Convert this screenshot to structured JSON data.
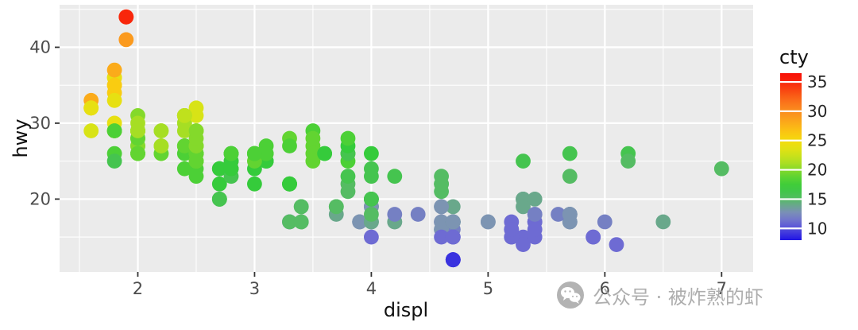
{
  "figure": {
    "background": "#FFFFFF",
    "panel_bg": "#EBEBEB",
    "grid_color": "#FFFFFF",
    "tick_color": "#333333",
    "tick_label_color": "#4D4D4D",
    "axis_title_color": "#111111",
    "point_radius": 9.4
  },
  "chart_data": {
    "type": "scatter",
    "title": "",
    "xlabel": "displ",
    "ylabel": "hwy",
    "color_label": "cty",
    "xlim": [
      1.33,
      7.27
    ],
    "ylim": [
      10.4,
      45.6
    ],
    "x_ticks": [
      2,
      3,
      4,
      5,
      6,
      7
    ],
    "x_minor_ticks": [
      1.5,
      2.5,
      3.5,
      4.5,
      5.5,
      6.5
    ],
    "y_ticks": [
      20,
      30,
      40
    ],
    "y_minor_ticks": [
      15,
      25,
      35,
      45
    ],
    "grid": true,
    "legend": {
      "title": "cty",
      "position": "right",
      "ticks": [
        35,
        30,
        25,
        20,
        15,
        10
      ],
      "range": [
        8.0,
        36.5
      ]
    },
    "color_scale": {
      "stops": [
        {
          "v": 8,
          "c": "#2015E5"
        },
        {
          "v": 11,
          "c": "#6E6BD3"
        },
        {
          "v": 13,
          "c": "#7C94B2"
        },
        {
          "v": 15,
          "c": "#55BC63"
        },
        {
          "v": 17,
          "c": "#35CB3B"
        },
        {
          "v": 19,
          "c": "#62D431"
        },
        {
          "v": 21,
          "c": "#A6DE24"
        },
        {
          "v": 23,
          "c": "#D8E316"
        },
        {
          "v": 25,
          "c": "#F6DC0D"
        },
        {
          "v": 27,
          "c": "#FBBC15"
        },
        {
          "v": 29,
          "c": "#FB9A1E"
        },
        {
          "v": 31,
          "c": "#FA7F1D"
        },
        {
          "v": 33,
          "c": "#F95414"
        },
        {
          "v": 36,
          "c": "#F80F07"
        }
      ]
    },
    "points": [
      [
        1.8,
        29,
        18
      ],
      [
        1.8,
        29,
        21
      ],
      [
        2,
        31,
        20
      ],
      [
        2,
        30,
        21
      ],
      [
        2.8,
        26,
        16
      ],
      [
        2.8,
        26,
        18
      ],
      [
        3.1,
        27,
        18
      ],
      [
        1.8,
        26,
        18
      ],
      [
        1.8,
        25,
        16
      ],
      [
        2,
        28,
        20
      ],
      [
        2,
        27,
        19
      ],
      [
        2.8,
        25,
        15
      ],
      [
        2.8,
        25,
        17
      ],
      [
        3.1,
        25,
        17
      ],
      [
        3.1,
        25,
        15
      ],
      [
        2.8,
        24,
        15
      ],
      [
        3.1,
        25,
        17
      ],
      [
        4.2,
        23,
        16
      ],
      [
        5.3,
        20,
        14
      ],
      [
        5.3,
        15,
        11
      ],
      [
        5.3,
        20,
        14
      ],
      [
        5.7,
        17,
        13
      ],
      [
        6,
        17,
        12
      ],
      [
        5.7,
        26,
        16
      ],
      [
        5.7,
        23,
        15
      ],
      [
        6.2,
        26,
        16
      ],
      [
        6.2,
        25,
        15
      ],
      [
        7,
        24,
        15
      ],
      [
        5.3,
        19,
        14
      ],
      [
        5.3,
        14,
        11
      ],
      [
        5.7,
        17,
        13
      ],
      [
        6.5,
        17,
        14
      ],
      [
        2.4,
        27,
        19
      ],
      [
        2.4,
        30,
        22
      ],
      [
        3.1,
        26,
        18
      ],
      [
        3.5,
        29,
        18
      ],
      [
        3.6,
        26,
        17
      ],
      [
        2.4,
        24,
        18
      ],
      [
        3,
        24,
        17
      ],
      [
        3.3,
        22,
        16
      ],
      [
        3.3,
        22,
        16
      ],
      [
        3.3,
        22,
        17
      ],
      [
        3.3,
        22,
        17
      ],
      [
        3.3,
        17,
        11
      ],
      [
        3.8,
        22,
        15
      ],
      [
        3.8,
        21,
        15
      ],
      [
        3.8,
        23,
        16
      ],
      [
        4,
        23,
        16
      ],
      [
        3.7,
        19,
        15
      ],
      [
        3.7,
        18,
        14
      ],
      [
        3.9,
        17,
        13
      ],
      [
        3.9,
        17,
        13
      ],
      [
        4.7,
        17,
        14
      ],
      [
        4.7,
        17,
        14
      ],
      [
        4.7,
        12,
        9
      ],
      [
        5.2,
        17,
        11
      ],
      [
        5.2,
        15,
        11
      ],
      [
        3.9,
        17,
        13
      ],
      [
        4.7,
        17,
        13
      ],
      [
        4.7,
        12,
        9
      ],
      [
        4.7,
        17,
        13
      ],
      [
        5.2,
        16,
        11
      ],
      [
        5.7,
        18,
        13
      ],
      [
        5.9,
        15,
        11
      ],
      [
        4.7,
        16,
        12
      ],
      [
        4.7,
        12,
        9
      ],
      [
        4.7,
        17,
        13
      ],
      [
        4.7,
        17,
        13
      ],
      [
        4.7,
        16,
        12
      ],
      [
        5.2,
        15,
        11
      ],
      [
        5.2,
        16,
        11
      ],
      [
        5.7,
        17,
        13
      ],
      [
        5.9,
        15,
        11
      ],
      [
        4.6,
        17,
        11
      ],
      [
        5.4,
        17,
        11
      ],
      [
        5.4,
        18,
        12
      ],
      [
        4,
        17,
        14
      ],
      [
        4,
        19,
        15
      ],
      [
        4,
        17,
        14
      ],
      [
        4,
        19,
        13
      ],
      [
        4.6,
        19,
        13
      ],
      [
        5,
        17,
        13
      ],
      [
        4.2,
        17,
        14
      ],
      [
        4.2,
        17,
        14
      ],
      [
        4.6,
        16,
        13
      ],
      [
        4.6,
        16,
        13
      ],
      [
        4.6,
        17,
        13
      ],
      [
        5.4,
        15,
        11
      ],
      [
        5.4,
        17,
        13
      ],
      [
        3.8,
        26,
        18
      ],
      [
        3.8,
        25,
        18
      ],
      [
        4,
        26,
        17
      ],
      [
        4,
        24,
        16
      ],
      [
        4.6,
        21,
        15
      ],
      [
        4.6,
        22,
        15
      ],
      [
        4.6,
        23,
        15
      ],
      [
        4.6,
        22,
        15
      ],
      [
        5.4,
        20,
        14
      ],
      [
        1.6,
        33,
        28
      ],
      [
        1.6,
        32,
        24
      ],
      [
        1.6,
        32,
        25
      ],
      [
        1.6,
        29,
        23
      ],
      [
        1.6,
        32,
        24
      ],
      [
        1.8,
        34,
        26
      ],
      [
        1.8,
        36,
        25
      ],
      [
        1.8,
        36,
        24
      ],
      [
        2,
        29,
        21
      ],
      [
        2.4,
        26,
        18
      ],
      [
        2.4,
        27,
        18
      ],
      [
        2.4,
        30,
        21
      ],
      [
        2.4,
        31,
        21
      ],
      [
        2.5,
        26,
        18
      ],
      [
        2.5,
        26,
        18
      ],
      [
        3.3,
        28,
        19
      ],
      [
        2,
        26,
        19
      ],
      [
        2,
        29,
        19
      ],
      [
        2,
        28,
        20
      ],
      [
        2,
        27,
        20
      ],
      [
        2.7,
        24,
        17
      ],
      [
        2.7,
        24,
        16
      ],
      [
        2.7,
        24,
        17
      ],
      [
        3,
        22,
        17
      ],
      [
        3.7,
        19,
        15
      ],
      [
        4,
        20,
        15
      ],
      [
        4.7,
        17,
        14
      ],
      [
        4.7,
        12,
        9
      ],
      [
        4.7,
        19,
        14
      ],
      [
        5.7,
        18,
        13
      ],
      [
        6.1,
        14,
        11
      ],
      [
        4,
        15,
        11
      ],
      [
        4.2,
        18,
        12
      ],
      [
        4.4,
        18,
        12
      ],
      [
        4.6,
        15,
        11
      ],
      [
        5.4,
        17,
        11
      ],
      [
        5.4,
        16,
        11
      ],
      [
        5.4,
        18,
        12
      ],
      [
        4,
        17,
        14
      ],
      [
        4,
        19,
        13
      ],
      [
        4.6,
        19,
        13
      ],
      [
        5,
        17,
        13
      ],
      [
        2.4,
        29,
        21
      ],
      [
        2.4,
        27,
        19
      ],
      [
        2.5,
        31,
        23
      ],
      [
        2.5,
        32,
        23
      ],
      [
        3.5,
        27,
        19
      ],
      [
        3.5,
        26,
        19
      ],
      [
        3,
        26,
        18
      ],
      [
        3,
        25,
        19
      ],
      [
        3.5,
        25,
        19
      ],
      [
        3.3,
        17,
        14
      ],
      [
        3.3,
        17,
        15
      ],
      [
        4,
        20,
        14
      ],
      [
        5.6,
        18,
        12
      ],
      [
        3.1,
        26,
        18
      ],
      [
        3.8,
        26,
        16
      ],
      [
        3.8,
        27,
        17
      ],
      [
        3.8,
        28,
        18
      ],
      [
        5.3,
        25,
        16
      ],
      [
        2.5,
        25,
        18
      ],
      [
        2.5,
        24,
        18
      ],
      [
        2.5,
        27,
        20
      ],
      [
        2.5,
        25,
        19
      ],
      [
        2.5,
        26,
        20
      ],
      [
        2.5,
        23,
        18
      ],
      [
        2.2,
        26,
        21
      ],
      [
        2.2,
        26,
        19
      ],
      [
        2.5,
        26,
        19
      ],
      [
        2.5,
        26,
        19
      ],
      [
        2.5,
        25,
        20
      ],
      [
        2.5,
        27,
        20
      ],
      [
        2.5,
        25,
        19
      ],
      [
        2.5,
        27,
        20
      ],
      [
        2.7,
        20,
        15
      ],
      [
        2.7,
        20,
        16
      ],
      [
        3.4,
        19,
        15
      ],
      [
        3.4,
        17,
        15
      ],
      [
        4,
        20,
        16
      ],
      [
        4.7,
        17,
        14
      ],
      [
        2.2,
        29,
        21
      ],
      [
        2.2,
        27,
        21
      ],
      [
        2.4,
        31,
        21
      ],
      [
        2.4,
        31,
        21
      ],
      [
        3,
        26,
        18
      ],
      [
        3,
        26,
        18
      ],
      [
        3.5,
        28,
        19
      ],
      [
        2.2,
        27,
        21
      ],
      [
        2.2,
        29,
        21
      ],
      [
        2.4,
        31,
        21
      ],
      [
        2.4,
        31,
        22
      ],
      [
        3,
        26,
        18
      ],
      [
        3,
        26,
        18
      ],
      [
        3.3,
        27,
        18
      ],
      [
        1.8,
        30,
        24
      ],
      [
        1.8,
        33,
        24
      ],
      [
        1.8,
        35,
        26
      ],
      [
        1.8,
        37,
        28
      ],
      [
        1.8,
        35,
        26
      ],
      [
        4.7,
        15,
        11
      ],
      [
        5.7,
        18,
        13
      ],
      [
        2.7,
        20,
        15
      ],
      [
        2.7,
        20,
        16
      ],
      [
        2.7,
        22,
        17
      ],
      [
        3.4,
        17,
        15
      ],
      [
        3.4,
        19,
        15
      ],
      [
        4,
        18,
        15
      ],
      [
        4,
        20,
        16
      ],
      [
        4.7,
        15,
        11
      ],
      [
        4.7,
        15,
        11
      ],
      [
        4.7,
        17,
        13
      ],
      [
        4.7,
        17,
        13
      ],
      [
        5.7,
        18,
        13
      ],
      [
        2,
        29,
        21
      ],
      [
        2,
        26,
        19
      ],
      [
        2,
        29,
        21
      ],
      [
        2,
        29,
        22
      ],
      [
        2.8,
        24,
        17
      ],
      [
        1.9,
        44,
        33
      ],
      [
        2,
        29,
        21
      ],
      [
        2,
        26,
        19
      ],
      [
        2,
        29,
        22
      ],
      [
        2,
        29,
        21
      ],
      [
        2.5,
        29,
        21
      ],
      [
        2.5,
        29,
        21
      ],
      [
        2.8,
        23,
        16
      ],
      [
        2.8,
        24,
        17
      ],
      [
        1.9,
        44,
        35
      ],
      [
        1.9,
        41,
        29
      ],
      [
        2,
        29,
        21
      ],
      [
        2,
        26,
        19
      ],
      [
        2.5,
        28,
        20
      ],
      [
        2.5,
        29,
        20
      ],
      [
        1.8,
        29,
        21
      ],
      [
        1.8,
        29,
        18
      ],
      [
        2,
        28,
        19
      ],
      [
        2,
        29,
        21
      ],
      [
        2.8,
        26,
        16
      ],
      [
        2.8,
        26,
        18
      ],
      [
        3.6,
        26,
        17
      ]
    ]
  },
  "watermark": {
    "icon": "wechat-icon",
    "text": "公众号 · 被炸熟的虾"
  }
}
